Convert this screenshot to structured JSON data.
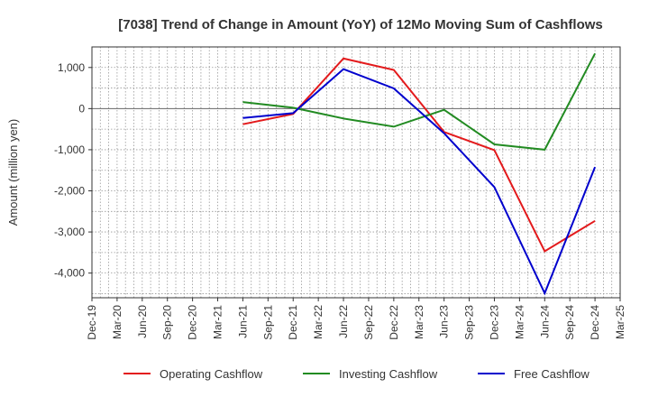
{
  "chart_data": {
    "type": "line",
    "title": "[7038]  Trend of Change in Amount (YoY) of 12Mo Moving Sum of Cashflows",
    "xlabel": "",
    "ylabel": "Amount (million yen)",
    "categories": [
      "Dec-19",
      "Mar-20",
      "Jun-20",
      "Sep-20",
      "Dec-20",
      "Mar-21",
      "Jun-21",
      "Sep-21",
      "Dec-21",
      "Mar-22",
      "Jun-22",
      "Sep-22",
      "Dec-22",
      "Mar-23",
      "Jun-23",
      "Sep-23",
      "Dec-23",
      "Mar-24",
      "Jun-24",
      "Sep-24",
      "Dec-24",
      "Mar-25"
    ],
    "ylim": [
      -4600,
      1500
    ],
    "yticks": [
      1000,
      0,
      -1000,
      -2000,
      -3000,
      -4000
    ],
    "ytick_labels": [
      "1,000",
      "0",
      "-1,000",
      "-2,000",
      "-3,000",
      "-4,000"
    ],
    "grid": true,
    "legend_position": "bottom",
    "series": [
      {
        "name": "Operating Cashflow",
        "color": "#e31a1c",
        "values": [
          null,
          null,
          null,
          null,
          null,
          null,
          -380,
          null,
          -130,
          null,
          1220,
          null,
          940,
          null,
          -570,
          null,
          -1010,
          null,
          -3470,
          null,
          -2730,
          null
        ]
      },
      {
        "name": "Investing Cashflow",
        "color": "#228b22",
        "values": [
          null,
          null,
          null,
          null,
          null,
          null,
          160,
          null,
          20,
          null,
          -240,
          null,
          -440,
          null,
          -30,
          null,
          -870,
          null,
          -1000,
          null,
          1340,
          null
        ]
      },
      {
        "name": "Free Cashflow",
        "color": "#0000cd",
        "values": [
          null,
          null,
          null,
          null,
          null,
          null,
          -230,
          null,
          -110,
          null,
          960,
          null,
          490,
          null,
          -600,
          null,
          -1910,
          null,
          -4490,
          null,
          -1420,
          null
        ]
      }
    ]
  }
}
